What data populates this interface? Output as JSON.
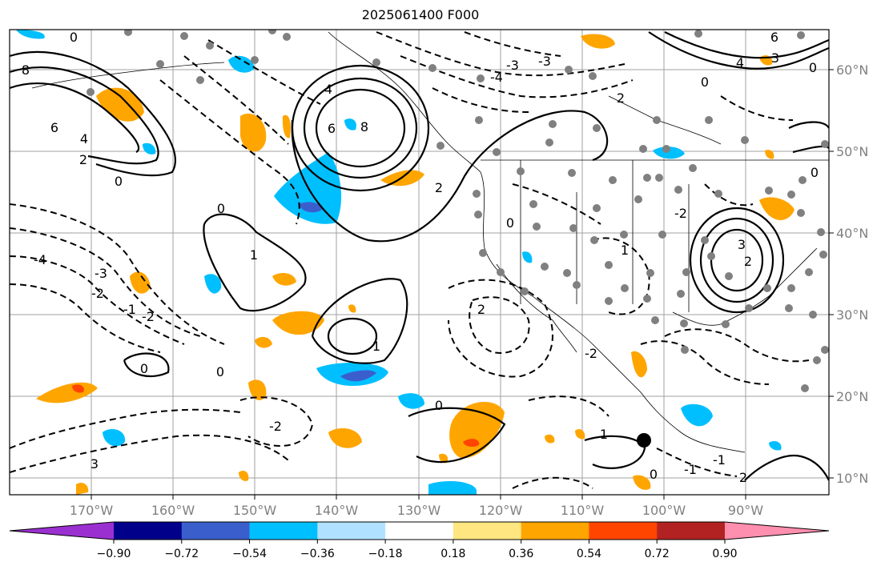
{
  "title": "2025061400 F000",
  "lon_ticks": [
    "170°W",
    "160°W",
    "150°W",
    "140°W",
    "130°W",
    "120°W",
    "110°W",
    "100°W",
    "90°W"
  ],
  "lat_ticks": [
    "60°N",
    "50°N",
    "40°N",
    "30°N",
    "20°N",
    "10°N"
  ],
  "colorbar": {
    "labels": [
      "−0.90",
      "−0.72",
      "−0.54",
      "−0.36",
      "−0.18",
      "0.18",
      "0.36",
      "0.54",
      "0.72",
      "0.90"
    ],
    "colors": [
      "#9b30d0",
      "#00008b",
      "#3a5fcd",
      "#00bfff",
      "#b0e2ff",
      "#ffffff",
      "#ffe680",
      "#ffa500",
      "#ff4500",
      "#b22222",
      "#ff8fae"
    ]
  },
  "contour_labels": [
    "0",
    "8",
    "6",
    "4",
    "2",
    "0",
    "4",
    "6",
    "8",
    "2",
    "0",
    "-4",
    "-3",
    "-2",
    "-1",
    "-2",
    "0",
    "0",
    "1",
    "1",
    "2",
    "-2",
    "0",
    "3",
    "2",
    "4",
    "6",
    "0",
    "-2",
    "0",
    "-1",
    "3",
    "2",
    "-3",
    "0",
    "1",
    "0",
    "1",
    "-4",
    "-3",
    "2",
    "-2",
    "-1",
    "0",
    "3"
  ],
  "shading_colors": {
    "orange": "#ffa500",
    "blue": "#00bfff",
    "darkblue": "#3a5fcd",
    "red": "#ff4500"
  }
}
